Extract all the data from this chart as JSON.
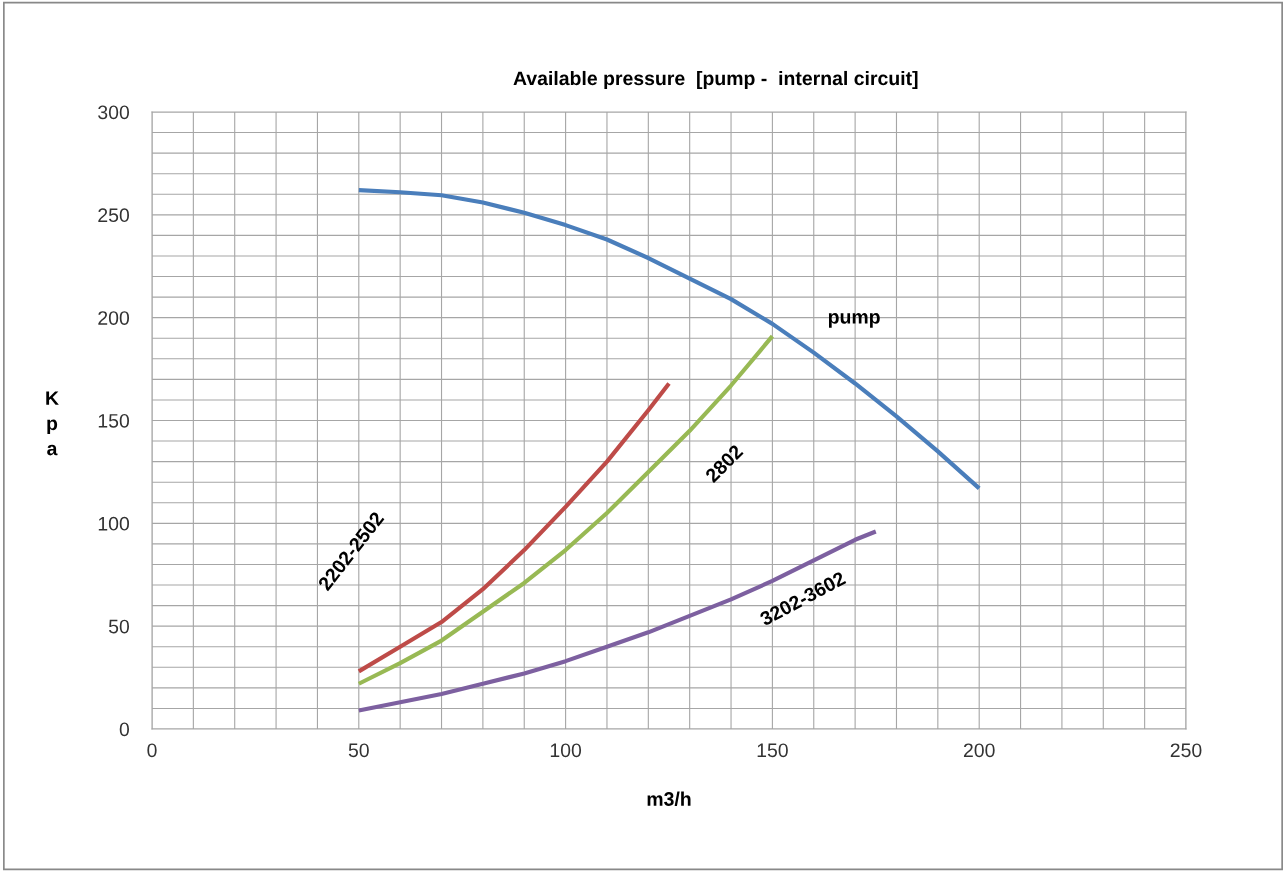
{
  "chart_data": {
    "type": "line",
    "title": "Available pressure  [pump -  internal circuit]",
    "xlabel": "m3/h",
    "ylabel": "K\np\na",
    "series": [
      {
        "name": "pump",
        "color": "#4a7ebb",
        "x": [
          50,
          60,
          70,
          80,
          90,
          100,
          110,
          120,
          130,
          140,
          150,
          160,
          170,
          180,
          190,
          200
        ],
        "values": [
          262,
          261,
          259.5,
          256,
          251,
          245,
          238,
          229,
          219,
          209,
          197,
          183,
          168,
          152,
          135,
          117
        ]
      },
      {
        "name": "2202-2502",
        "color": "#be4b48",
        "x": [
          50,
          60,
          70,
          80,
          90,
          100,
          110,
          120,
          125
        ],
        "values": [
          28,
          40,
          52,
          68,
          87,
          108,
          130,
          155,
          168
        ]
      },
      {
        "name": "2802",
        "color": "#98b954",
        "x": [
          50,
          60,
          70,
          80,
          90,
          100,
          110,
          120,
          130,
          140,
          150
        ],
        "values": [
          22,
          32,
          43,
          57,
          71,
          87,
          105,
          125,
          145,
          167,
          191
        ]
      },
      {
        "name": "3202-3602",
        "color": "#7d60a0",
        "x": [
          50,
          60,
          70,
          80,
          90,
          100,
          110,
          120,
          130,
          140,
          150,
          160,
          170,
          175
        ],
        "values": [
          9,
          13,
          17,
          22,
          27,
          33,
          40,
          47,
          55,
          63,
          72,
          82,
          92,
          96
        ]
      }
    ],
    "xlim": [
      0,
      250
    ],
    "ylim": [
      0,
      300
    ],
    "xticks": [
      0,
      {
        "value": 10,
        "label": null
      },
      {
        "value": 20,
        "label": null
      },
      {
        "value": 30,
        "label": null
      },
      {
        "value": 40,
        "label": null
      },
      50,
      {
        "value": 60,
        "label": null
      },
      {
        "value": 70,
        "label": null
      },
      {
        "value": 80,
        "label": null
      },
      {
        "value": 90,
        "label": null
      },
      100,
      {
        "value": 110,
        "label": null
      },
      {
        "value": 120,
        "label": null
      },
      {
        "value": 130,
        "label": null
      },
      {
        "value": 140,
        "label": null
      },
      150,
      {
        "value": 160,
        "label": null
      },
      {
        "value": 170,
        "label": null
      },
      {
        "value": 180,
        "label": null
      },
      {
        "value": 190,
        "label": null
      },
      200,
      {
        "value": 210,
        "label": null
      },
      {
        "value": 220,
        "label": null
      },
      {
        "value": 230,
        "label": null
      },
      {
        "value": 240,
        "label": null
      },
      250
    ],
    "yticks": [
      0,
      {
        "value": 10,
        "label": null
      },
      {
        "value": 20,
        "label": null
      },
      {
        "value": 30,
        "label": null
      },
      {
        "value": 40,
        "label": null
      },
      50,
      {
        "value": 60,
        "label": null
      },
      {
        "value": 70,
        "label": null
      },
      {
        "value": 80,
        "label": null
      },
      {
        "value": 90,
        "label": null
      },
      100,
      {
        "value": 110,
        "label": null
      },
      {
        "value": 120,
        "label": null
      },
      {
        "value": 130,
        "label": null
      },
      {
        "value": 140,
        "label": null
      },
      150,
      {
        "value": 160,
        "label": null
      },
      {
        "value": 170,
        "label": null
      },
      {
        "value": 180,
        "label": null
      },
      {
        "value": 190,
        "label": null
      },
      200,
      {
        "value": 210,
        "label": null
      },
      {
        "value": 220,
        "label": null
      },
      {
        "value": 230,
        "label": null
      },
      {
        "value": 240,
        "label": null
      },
      250,
      {
        "value": 260,
        "label": null
      },
      {
        "value": 270,
        "label": null
      },
      {
        "value": 280,
        "label": null
      },
      {
        "value": 290,
        "label": null
      },
      300
    ],
    "grid": true,
    "legend": false,
    "marker": "none",
    "line_style": "solid"
  }
}
